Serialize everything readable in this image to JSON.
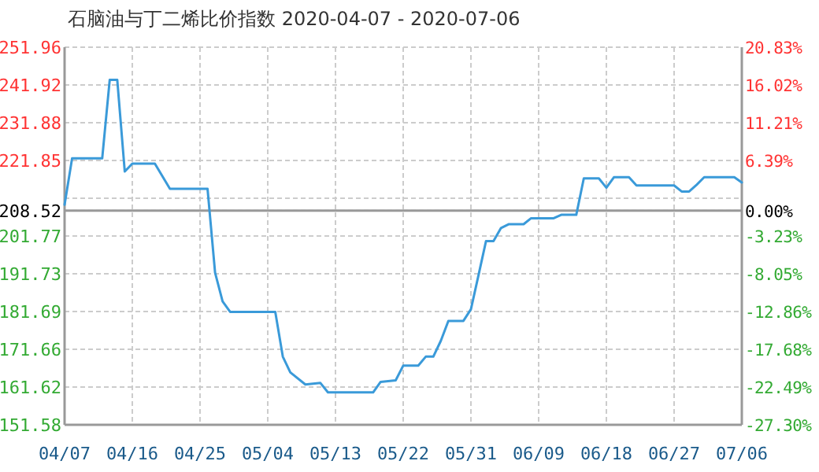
{
  "chart_data": {
    "type": "line",
    "title": "石脑油与丁二烯比价指数 2020-04-07 - 2020-07-06",
    "x": [
      "2020-04-07",
      "2020-04-08",
      "2020-04-12",
      "2020-04-13",
      "2020-04-14",
      "2020-04-15",
      "2020-04-16",
      "2020-04-19",
      "2020-04-21",
      "2020-04-26",
      "2020-04-27",
      "2020-04-28",
      "2020-04-29",
      "2020-05-05",
      "2020-05-06",
      "2020-05-07",
      "2020-05-09",
      "2020-05-11",
      "2020-05-12",
      "2020-05-18",
      "2020-05-19",
      "2020-05-21",
      "2020-05-22",
      "2020-05-24",
      "2020-05-25",
      "2020-05-26",
      "2020-05-27",
      "2020-05-28",
      "2020-05-30",
      "2020-05-31",
      "2020-06-01",
      "2020-06-02",
      "2020-06-03",
      "2020-06-04",
      "2020-06-05",
      "2020-06-07",
      "2020-06-08",
      "2020-06-11",
      "2020-06-12",
      "2020-06-14",
      "2020-06-15",
      "2020-06-17",
      "2020-06-18",
      "2020-06-19",
      "2020-06-21",
      "2020-06-22",
      "2020-06-27",
      "2020-06-28",
      "2020-06-29",
      "2020-06-30",
      "2020-07-01",
      "2020-07-05",
      "2020-07-06"
    ],
    "series": [
      {
        "color": "#3a9ad9",
        "values": [
          210.1,
          222.4,
          222.4,
          243.3,
          243.3,
          218.9,
          221.0,
          221.0,
          214.3,
          214.3,
          192.0,
          184.4,
          181.6,
          181.6,
          169.7,
          165.5,
          162.3,
          162.7,
          160.2,
          160.2,
          163.0,
          163.4,
          167.3,
          167.3,
          169.7,
          169.7,
          173.9,
          179.2,
          179.2,
          182.3,
          191.3,
          200.4,
          200.4,
          203.9,
          204.9,
          204.9,
          206.5,
          206.5,
          207.4,
          207.4,
          217.1,
          217.1,
          214.6,
          217.4,
          217.4,
          215.2,
          215.2,
          213.6,
          213.6,
          215.4,
          217.4,
          217.4,
          216.0
        ]
      }
    ],
    "xlim": [
      "2020-04-07",
      "2020-07-06"
    ],
    "xticks": [
      {
        "value": "2020-04-07",
        "label": "04/07"
      },
      {
        "value": "2020-04-16",
        "label": "04/16"
      },
      {
        "value": "2020-04-25",
        "label": "04/25"
      },
      {
        "value": "2020-05-04",
        "label": "05/04"
      },
      {
        "value": "2020-05-13",
        "label": "05/13"
      },
      {
        "value": "2020-05-22",
        "label": "05/22"
      },
      {
        "value": "2020-05-31",
        "label": "05/31"
      },
      {
        "value": "2020-06-09",
        "label": "06/09"
      },
      {
        "value": "2020-06-18",
        "label": "06/18"
      },
      {
        "value": "2020-06-27",
        "label": "06/27"
      },
      {
        "value": "2020-07-06",
        "label": "07/06"
      }
    ],
    "ylim": [
      151.58,
      251.96
    ],
    "yticks": [
      {
        "value": 151.58,
        "label": "151.58"
      },
      {
        "value": 161.62,
        "label": "161.62"
      },
      {
        "value": 171.66,
        "label": "171.66"
      },
      {
        "value": 181.69,
        "label": "181.69"
      },
      {
        "value": 191.73,
        "label": "191.73"
      },
      {
        "value": 201.77,
        "label": "201.77"
      },
      {
        "value": 208.52,
        "label": "208.52"
      },
      {
        "value": 211.81,
        "label": null
      },
      {
        "value": 221.85,
        "label": "221.85"
      },
      {
        "value": 231.88,
        "label": "231.88"
      },
      {
        "value": 241.92,
        "label": "241.92"
      },
      {
        "value": 251.96,
        "label": "251.96"
      }
    ],
    "y2lim": [
      -27.3,
      20.83
    ],
    "y2ticks": [
      {
        "value": -27.3,
        "label": "-27.30%"
      },
      {
        "value": -22.49,
        "label": "-22.49%"
      },
      {
        "value": -17.68,
        "label": "-17.68%"
      },
      {
        "value": -12.86,
        "label": "-12.86%"
      },
      {
        "value": -8.05,
        "label": "-8.05%"
      },
      {
        "value": -3.23,
        "label": "-3.23%"
      },
      {
        "value": 0,
        "label": "0.00%"
      },
      {
        "value": 6.39,
        "label": "6.39%"
      },
      {
        "value": 11.21,
        "label": "11.21%"
      },
      {
        "value": 16.02,
        "label": "16.02%"
      },
      {
        "value": 20.83,
        "label": "20.83%"
      }
    ],
    "ref_lines": [
      {
        "axis": "y",
        "value": 208.52,
        "color": "#999999",
        "line_style": "solid"
      }
    ],
    "grid": true,
    "line_style": "solid",
    "marker": "none"
  }
}
